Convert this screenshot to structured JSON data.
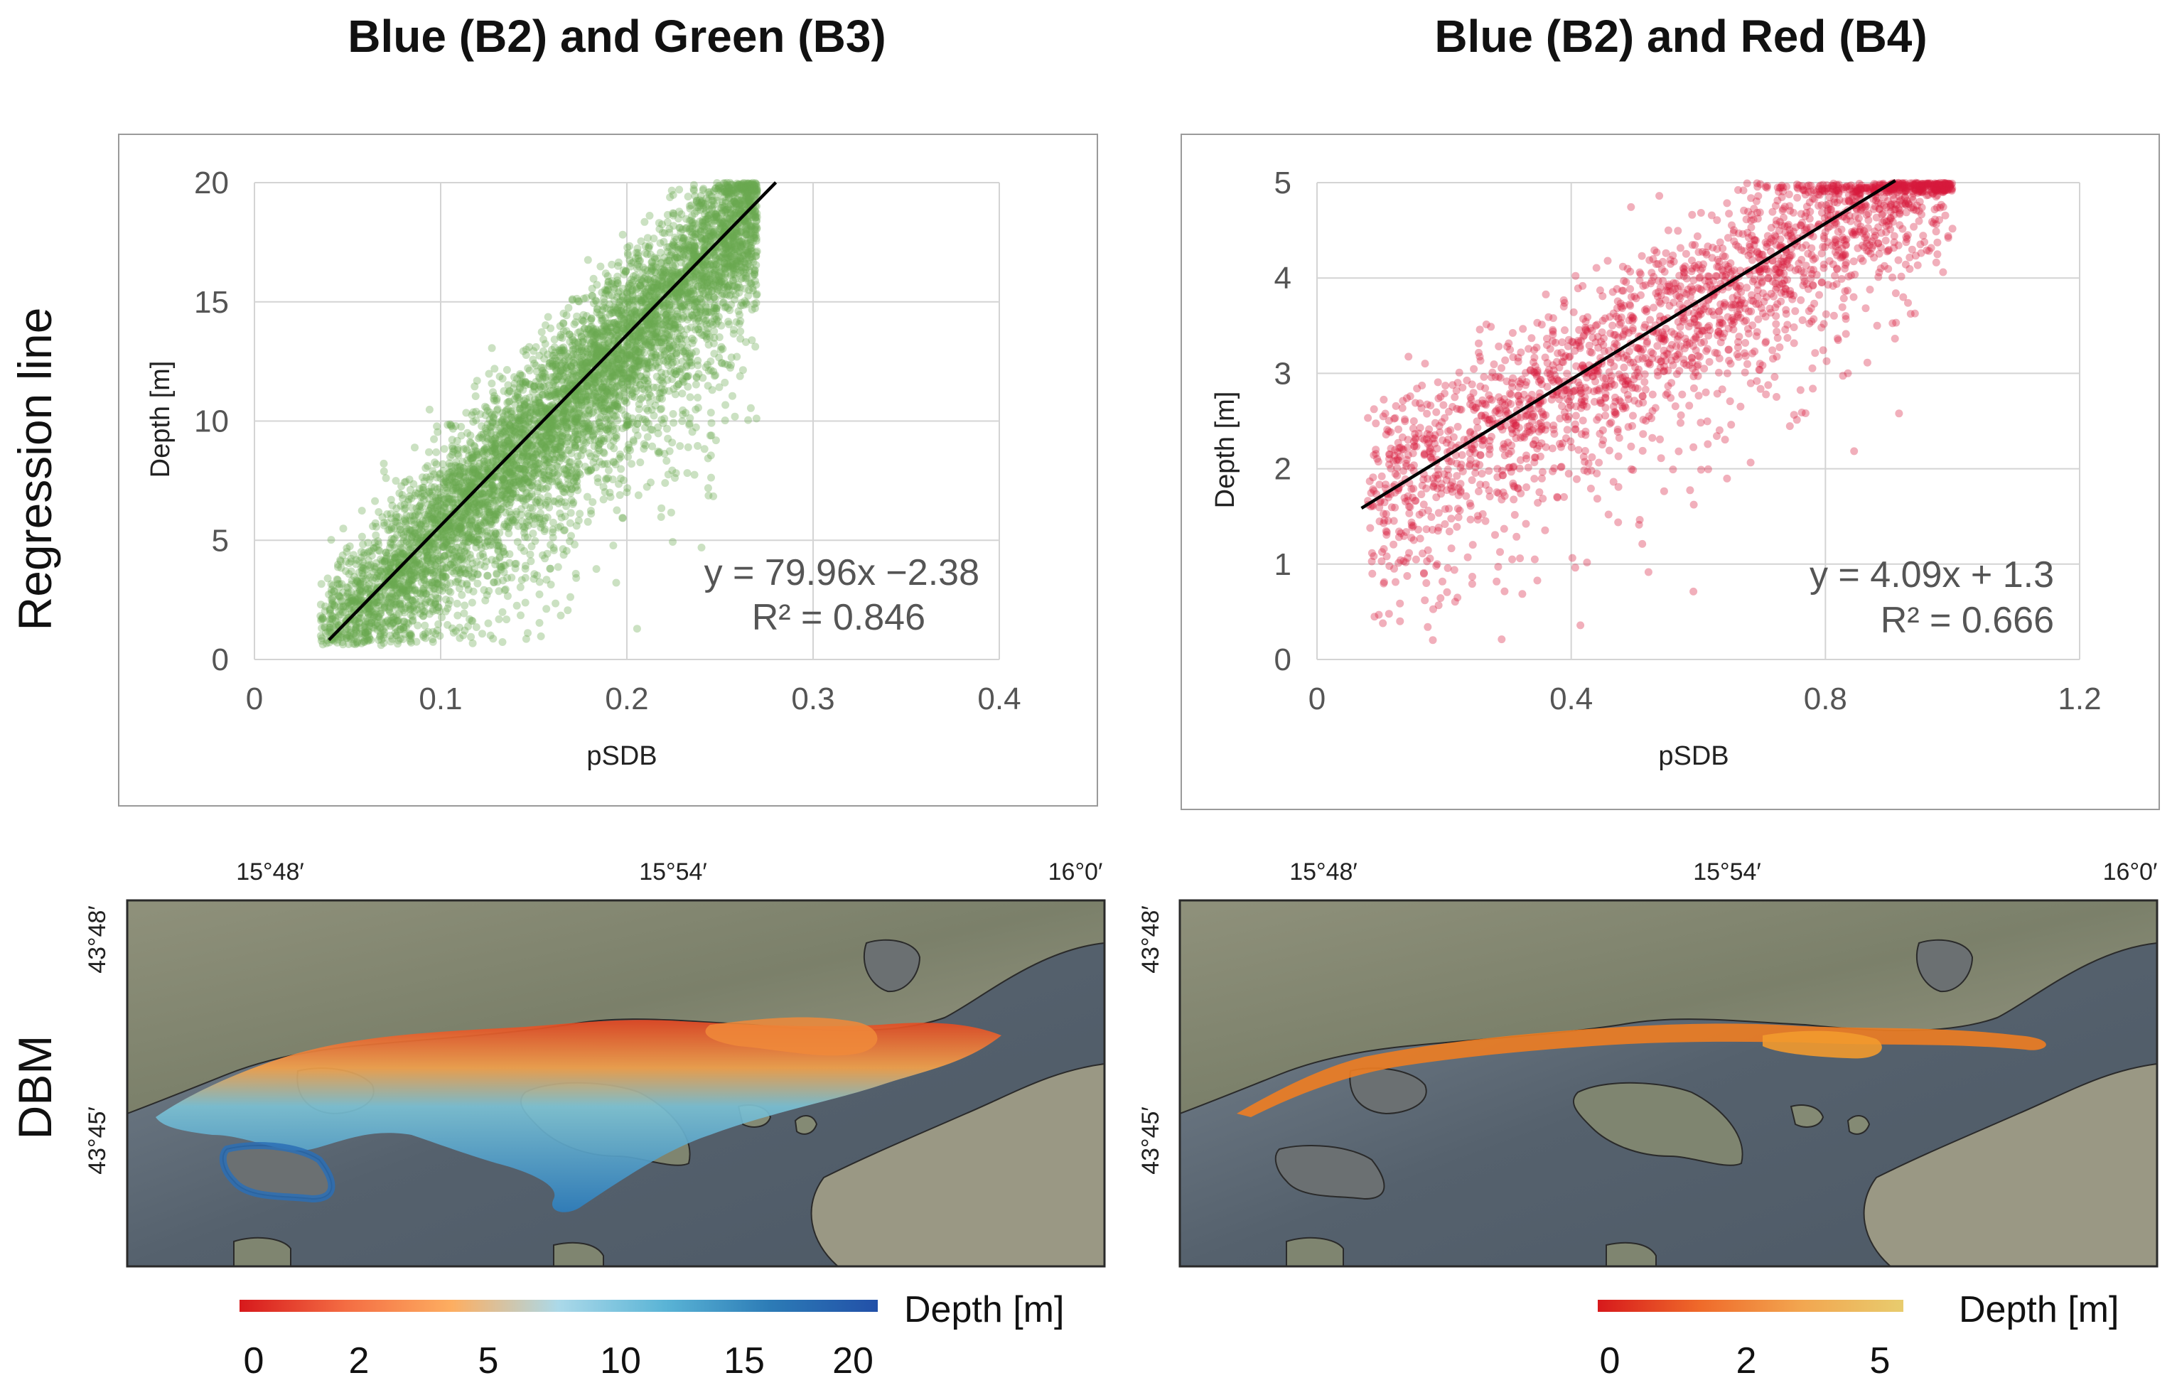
{
  "panel_titles": [
    "Blue (B2) and Green (B3)",
    "Blue (B2) and Red (B4)"
  ],
  "row_labels": {
    "regression": "Regression line",
    "dbm": "DBM"
  },
  "chart_data": [
    {
      "type": "scatter",
      "title": "Blue (B2) and Green (B3)",
      "xlabel": "pSDB",
      "ylabel": "Depth [m]",
      "xlim": [
        0,
        0.4
      ],
      "ylim": [
        0,
        20
      ],
      "xticks": [
        0,
        0.1,
        0.2,
        0.3,
        0.4
      ],
      "xtick_labels": [
        "0",
        "0.1",
        "0.2",
        "0.3",
        "0.4"
      ],
      "yticks": [
        0,
        5,
        10,
        15,
        20
      ],
      "ytick_labels": [
        "0",
        "5",
        "10",
        "15",
        "20"
      ],
      "grid": true,
      "point_color": "#6aa84f",
      "regression": {
        "slope": 79.96,
        "intercept": -2.38,
        "x_range": [
          0.04,
          0.28
        ]
      },
      "equation_text": "y = 79.96x −2.38",
      "r2_text": "R² = 0.846",
      "scatter": {
        "n": 6500,
        "x_range": [
          0.035,
          0.27
        ],
        "noise_sd": 1.6,
        "seed": 7
      }
    },
    {
      "type": "scatter",
      "title": "Blue (B2) and Red (B4)",
      "xlabel": "pSDB",
      "ylabel": "Depth [m]",
      "xlim": [
        0,
        1.2
      ],
      "ylim": [
        0,
        5
      ],
      "xticks": [
        0,
        0.4,
        0.8,
        1.2
      ],
      "xtick_labels": [
        "0",
        "0.4",
        "0.8",
        "1.2"
      ],
      "yticks": [
        0,
        1,
        2,
        3,
        4,
        5
      ],
      "ytick_labels": [
        "0",
        "1",
        "2",
        "3",
        "4",
        "5"
      ],
      "grid": true,
      "point_color": "#d81b3c",
      "regression": {
        "slope": 4.09,
        "intercept": 1.3,
        "x_range": [
          0.07,
          0.91
        ]
      },
      "equation_text": "y = 4.09x + 1.3",
      "r2_text": "R² = 0.666",
      "scatter": {
        "n": 2400,
        "x_range": [
          0.08,
          1.0
        ],
        "noise_sd": 0.45,
        "seed": 11
      }
    }
  ],
  "maps": [
    {
      "top_labels": [
        "15°48′",
        "15°54′",
        "16°0′"
      ],
      "left_labels": [
        "43°48′",
        "43°45′"
      ],
      "legend_title": "Depth [m]",
      "legend_ticks": [
        "0",
        "2",
        "5",
        "10",
        "15",
        "20"
      ],
      "legend_colors": [
        "#d7191c",
        "#f46d43",
        "#fdae61",
        "#abd9e9",
        "#5ab4d6",
        "#2c7bb6",
        "#2250a8"
      ]
    },
    {
      "top_labels": [
        "15°48′",
        "15°54′",
        "16°0′"
      ],
      "left_labels": [
        "43°48′",
        "43°45′"
      ],
      "legend_title": "Depth [m]",
      "legend_ticks": [
        "0",
        "2",
        "5"
      ],
      "legend_colors": [
        "#d7191c",
        "#ef6a2a",
        "#f2a650",
        "#e8cc6e"
      ]
    }
  ]
}
